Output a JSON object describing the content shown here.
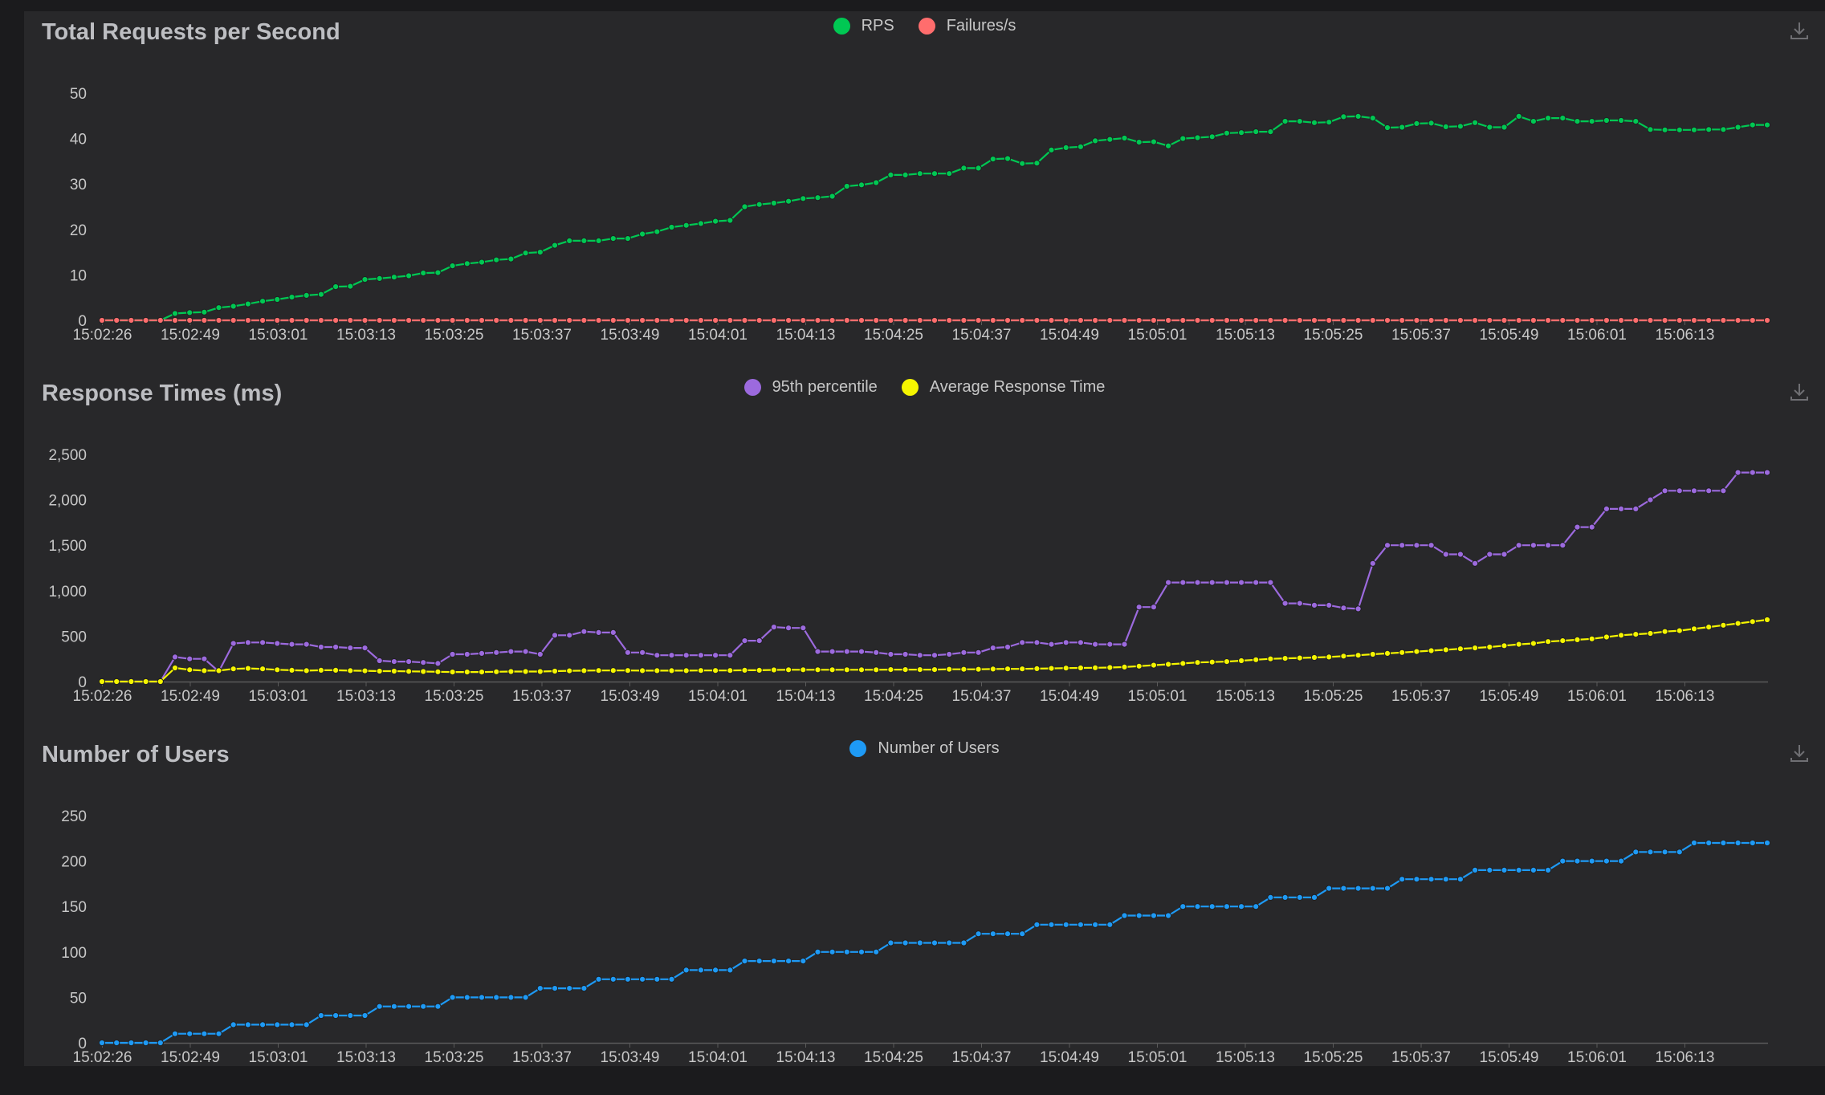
{
  "colors": {
    "rps": "#00c853",
    "failures": "#ff6d6d",
    "p95": "#9c6ade",
    "avg": "#f5f500",
    "users": "#1e9af5",
    "axis_text": "#c8c8c8",
    "axis_line": "#5a5a5a"
  },
  "icons": {
    "download": "download-icon"
  },
  "chart_data": [
    {
      "type": "line",
      "title": "Total Requests per Second",
      "x_ticks": [
        "15:02:26",
        "15:02:49",
        "15:03:01",
        "15:03:13",
        "15:03:25",
        "15:03:37",
        "15:03:49",
        "15:04:01",
        "15:04:13",
        "15:04:25",
        "15:04:37",
        "15:04:49",
        "15:05:01",
        "15:05:13",
        "15:05:25",
        "15:05:37",
        "15:05:49",
        "15:06:01",
        "15:06:13"
      ],
      "y_ticks": [
        "0",
        "10",
        "20",
        "30",
        "40",
        "50"
      ],
      "ylim": [
        0,
        50
      ],
      "grid": false,
      "legend_position": "top-center",
      "series": [
        {
          "name": "RPS",
          "values": [
            0,
            0,
            0,
            0,
            0,
            1.5,
            1.7,
            1.8,
            2.8,
            3.1,
            3.6,
            4.2,
            4.6,
            5.1,
            5.5,
            5.7,
            7.4,
            7.5,
            9,
            9.2,
            9.5,
            9.8,
            10.4,
            10.5,
            12,
            12.5,
            12.8,
            13.3,
            13.5,
            14.8,
            15,
            16.5,
            17.5,
            17.5,
            17.5,
            18,
            18,
            19,
            19.5,
            20.5,
            20.9,
            21.3,
            21.8,
            22,
            25,
            25.5,
            25.8,
            26.2,
            26.8,
            27,
            27.3,
            29.5,
            29.8,
            30.3,
            32,
            32,
            32.3,
            32.3,
            32.3,
            33.5,
            33.5,
            35.5,
            35.6,
            34.5,
            34.6,
            37.5,
            38,
            38.2,
            39.5,
            39.8,
            40.1,
            39.2,
            39.3,
            38.4,
            40,
            40.2,
            40.4,
            41.2,
            41.3,
            41.5,
            41.5,
            43.8,
            43.8,
            43.5,
            43.6,
            44.8,
            44.9,
            44.5,
            42.4,
            42.5,
            43.3,
            43.4,
            42.6,
            42.7,
            43.5,
            42.5,
            42.5,
            44.9,
            43.8,
            44.5,
            44.5,
            43.8,
            43.8,
            44,
            44,
            43.8,
            42,
            41.9,
            41.9,
            41.9,
            42,
            42,
            42.5,
            43,
            43
          ]
        },
        {
          "name": "Failures/s",
          "values": [
            0,
            0,
            0,
            0,
            0,
            0,
            0,
            0,
            0,
            0,
            0,
            0,
            0,
            0,
            0,
            0,
            0,
            0,
            0,
            0,
            0,
            0,
            0,
            0,
            0,
            0,
            0,
            0,
            0,
            0,
            0,
            0,
            0,
            0,
            0,
            0,
            0,
            0,
            0,
            0,
            0,
            0,
            0,
            0,
            0,
            0,
            0,
            0,
            0,
            0,
            0,
            0,
            0,
            0,
            0,
            0,
            0,
            0,
            0,
            0,
            0,
            0,
            0,
            0,
            0,
            0,
            0,
            0,
            0,
            0,
            0,
            0,
            0,
            0,
            0,
            0,
            0,
            0,
            0,
            0,
            0,
            0,
            0,
            0,
            0,
            0,
            0,
            0,
            0,
            0,
            0,
            0,
            0,
            0,
            0,
            0,
            0,
            0,
            0,
            0,
            0,
            0,
            0,
            0,
            0,
            0,
            0,
            0,
            0,
            0,
            0,
            0,
            0,
            0,
            0
          ]
        }
      ]
    },
    {
      "type": "line",
      "title": "Response Times (ms)",
      "x_ticks": [
        "15:02:26",
        "15:02:49",
        "15:03:01",
        "15:03:13",
        "15:03:25",
        "15:03:37",
        "15:03:49",
        "15:04:01",
        "15:04:13",
        "15:04:25",
        "15:04:37",
        "15:04:49",
        "15:05:01",
        "15:05:13",
        "15:05:25",
        "15:05:37",
        "15:05:49",
        "15:06:01",
        "15:06:13"
      ],
      "y_ticks": [
        "0",
        "500",
        "1,000",
        "1,500",
        "2,000",
        "2,500"
      ],
      "ylim": [
        0,
        2500
      ],
      "grid": false,
      "legend_position": "top-center",
      "series": [
        {
          "name": "95th percentile",
          "values": [
            0,
            0,
            0,
            0,
            0,
            270,
            250,
            250,
            110,
            420,
            430,
            430,
            420,
            410,
            410,
            380,
            380,
            370,
            370,
            230,
            220,
            220,
            210,
            200,
            300,
            300,
            310,
            320,
            330,
            330,
            300,
            510,
            510,
            550,
            540,
            540,
            320,
            320,
            290,
            290,
            290,
            290,
            290,
            290,
            450,
            450,
            600,
            590,
            590,
            330,
            330,
            330,
            330,
            320,
            300,
            300,
            290,
            290,
            300,
            320,
            320,
            370,
            380,
            430,
            430,
            410,
            430,
            430,
            410,
            410,
            410,
            820,
            820,
            1090,
            1090,
            1090,
            1090,
            1090,
            1090,
            1090,
            1090,
            860,
            860,
            840,
            840,
            810,
            800,
            1300,
            1500,
            1500,
            1500,
            1500,
            1400,
            1400,
            1300,
            1400,
            1400,
            1500,
            1500,
            1500,
            1500,
            1700,
            1700,
            1900,
            1900,
            1900,
            2000,
            2100,
            2100,
            2100,
            2100,
            2100,
            2300,
            2300,
            2300
          ]
        },
        {
          "name": "Average Response Time",
          "values": [
            0,
            0,
            0,
            0,
            0,
            150,
            130,
            120,
            120,
            140,
            145,
            140,
            130,
            125,
            120,
            125,
            125,
            120,
            118,
            115,
            115,
            112,
            110,
            108,
            105,
            105,
            105,
            108,
            110,
            110,
            110,
            115,
            118,
            120,
            122,
            122,
            122,
            120,
            120,
            120,
            120,
            122,
            122,
            122,
            125,
            125,
            128,
            130,
            130,
            130,
            130,
            130,
            130,
            130,
            132,
            132,
            132,
            132,
            135,
            135,
            135,
            138,
            140,
            140,
            142,
            145,
            148,
            150,
            152,
            155,
            160,
            170,
            180,
            190,
            200,
            210,
            215,
            220,
            230,
            240,
            250,
            255,
            260,
            265,
            270,
            280,
            290,
            300,
            310,
            320,
            330,
            340,
            350,
            360,
            370,
            380,
            395,
            410,
            420,
            440,
            450,
            460,
            470,
            490,
            510,
            520,
            530,
            550,
            560,
            580,
            600,
            620,
            640,
            660,
            680
          ]
        }
      ]
    },
    {
      "type": "line",
      "title": "Number of Users",
      "x_ticks": [
        "15:02:26",
        "15:02:49",
        "15:03:01",
        "15:03:13",
        "15:03:25",
        "15:03:37",
        "15:03:49",
        "15:04:01",
        "15:04:13",
        "15:04:25",
        "15:04:37",
        "15:04:49",
        "15:05:01",
        "15:05:13",
        "15:05:25",
        "15:05:37",
        "15:05:49",
        "15:06:01",
        "15:06:13"
      ],
      "y_ticks": [
        "0",
        "50",
        "100",
        "150",
        "200",
        "250"
      ],
      "ylim": [
        0,
        250
      ],
      "grid": false,
      "legend_position": "top-center",
      "series": [
        {
          "name": "Number of Users",
          "values": [
            0,
            0,
            0,
            0,
            0,
            10,
            10,
            10,
            10,
            20,
            20,
            20,
            20,
            20,
            20,
            30,
            30,
            30,
            30,
            40,
            40,
            40,
            40,
            40,
            50,
            50,
            50,
            50,
            50,
            50,
            60,
            60,
            60,
            60,
            70,
            70,
            70,
            70,
            70,
            70,
            80,
            80,
            80,
            80,
            90,
            90,
            90,
            90,
            90,
            100,
            100,
            100,
            100,
            100,
            110,
            110,
            110,
            110,
            110,
            110,
            120,
            120,
            120,
            120,
            130,
            130,
            130,
            130,
            130,
            130,
            140,
            140,
            140,
            140,
            150,
            150,
            150,
            150,
            150,
            150,
            160,
            160,
            160,
            160,
            170,
            170,
            170,
            170,
            170,
            180,
            180,
            180,
            180,
            180,
            190,
            190,
            190,
            190,
            190,
            190,
            200,
            200,
            200,
            200,
            200,
            210,
            210,
            210,
            210,
            220,
            220,
            220,
            220,
            220,
            220
          ]
        }
      ]
    }
  ]
}
